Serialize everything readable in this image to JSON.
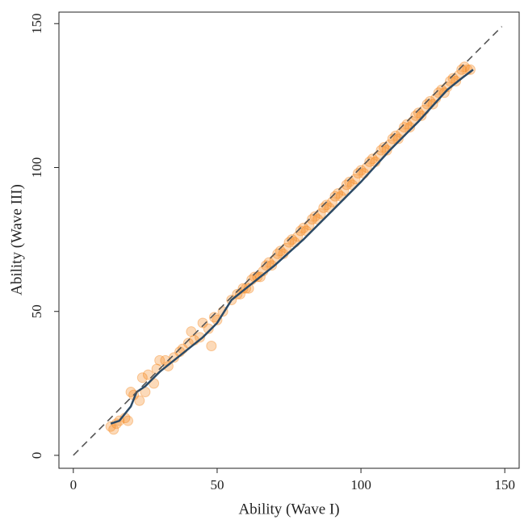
{
  "chart_data": {
    "type": "scatter",
    "x_label": "Ability (Wave I)",
    "y_label": "Ability (Wave III)",
    "xlim": [
      -5,
      155
    ],
    "ylim": [
      -4.5,
      154
    ],
    "xticks": [
      0,
      50,
      100,
      150
    ],
    "yticks": [
      0,
      50,
      100,
      150
    ],
    "series": [
      {
        "type": "scatter",
        "color": "#f58518",
        "x": [
          13,
          14,
          15,
          16,
          18,
          19,
          20,
          21,
          23,
          24,
          25,
          26,
          28,
          29,
          30,
          32,
          33,
          35,
          37,
          38,
          40,
          41,
          42,
          44,
          45,
          47,
          48,
          49,
          50,
          52,
          55,
          57,
          58,
          60,
          62,
          64,
          66,
          68,
          70,
          72,
          74,
          76,
          78,
          80,
          82,
          84,
          86,
          88,
          90,
          92,
          94,
          96,
          98,
          100,
          102,
          104,
          106,
          108,
          110,
          112,
          114,
          116,
          118,
          120,
          122,
          124,
          126,
          128,
          130,
          132,
          134,
          136,
          138,
          59,
          61,
          63,
          65,
          67,
          69,
          71,
          73,
          75,
          77,
          79,
          81,
          83,
          85,
          87,
          89,
          91,
          93,
          95,
          97,
          99,
          101,
          103,
          105,
          107,
          109,
          111,
          113,
          115,
          117,
          119,
          121,
          123,
          125,
          127,
          129,
          131,
          133,
          135,
          137
        ],
        "values": [
          10,
          9,
          11,
          12,
          13,
          12,
          22,
          21,
          19,
          27,
          22,
          28,
          25,
          30,
          33,
          33,
          31,
          34,
          36,
          37,
          39,
          43,
          40,
          41,
          46,
          44,
          38,
          48,
          47,
          50,
          54,
          56,
          56,
          58,
          61,
          62,
          64,
          67,
          68,
          71,
          72,
          75,
          76,
          79,
          80,
          83,
          84,
          87,
          88,
          91,
          92,
          95,
          96,
          99,
          100,
          103,
          104,
          107,
          108,
          111,
          112,
          115,
          116,
          119,
          120,
          123,
          124,
          127,
          128,
          131,
          132,
          135,
          134,
          58,
          58,
          62,
          62,
          66,
          66,
          70,
          70,
          74,
          74,
          78,
          78,
          82,
          82,
          86,
          86,
          90,
          90,
          94,
          94,
          98,
          98,
          102,
          102,
          106,
          106,
          110,
          110,
          114,
          114,
          118,
          118,
          122,
          122,
          126,
          126,
          130,
          130,
          134,
          134
        ]
      },
      {
        "type": "line",
        "color": "#2b4a66",
        "x": [
          13,
          16,
          20,
          22,
          25,
          30,
          35,
          40,
          45,
          50,
          55,
          60,
          70,
          80,
          90,
          100,
          110,
          120,
          130,
          135,
          139
        ],
        "values": [
          11,
          12,
          17,
          22,
          24,
          29,
          33,
          37,
          41,
          46,
          54,
          58,
          66,
          75,
          85,
          95,
          106,
          116,
          127,
          131,
          134
        ]
      },
      {
        "type": "line",
        "color": "#555555",
        "dashed": true,
        "x": [
          0,
          149
        ],
        "values": [
          0,
          149
        ]
      }
    ]
  }
}
